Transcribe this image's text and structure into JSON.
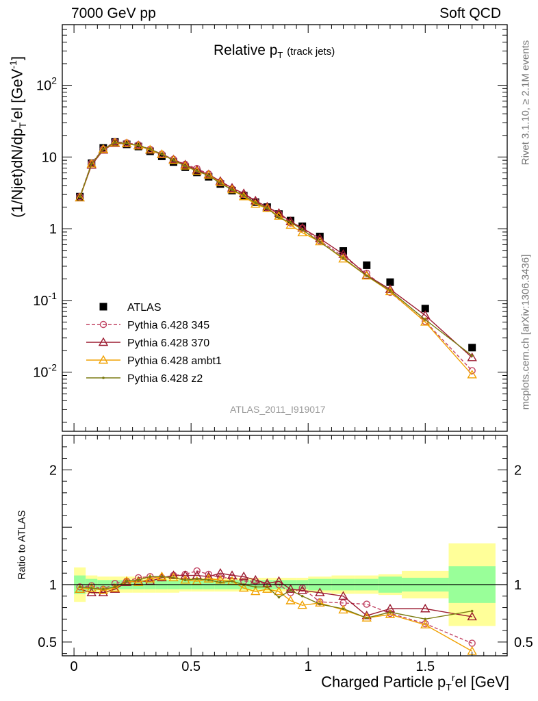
{
  "header": {
    "left": "7000 GeV pp",
    "right": "Soft QCD"
  },
  "side_labels": {
    "rivet": "Rivet 3.1.10, ≥ 2.1M events",
    "mcplots": "mcplots.cern.ch [arXiv:1306.3436]"
  },
  "plot_title": {
    "main": "Relative p",
    "sub": "T",
    "suffix": "(track jets)"
  },
  "analysis_id": "ATLAS_2011_I919017",
  "ylabel_top": "(1/Njet)dN/dp",
  "ylabel_top_sub": "T",
  "ylabel_top_sup": "r",
  "ylabel_top_rest": "el [GeV",
  "ylabel_top_exp": "-1",
  "ylabel_top_end": "]",
  "ylabel_bottom": "Ratio to ATLAS",
  "xlabel": "Charged Particle p",
  "xlabel_sub": "T",
  "xlabel_sup": "r",
  "xlabel_rest": "el [GeV]",
  "legend": [
    {
      "name": "ATLAS",
      "color": "#000000",
      "marker": "square"
    },
    {
      "name": "Pythia 6.428 345",
      "color": "#c04060",
      "marker": "circle",
      "dashed": true
    },
    {
      "name": "Pythia 6.428 370",
      "color": "#9b1b30",
      "marker": "triangle"
    },
    {
      "name": "Pythia 6.428 ambt1",
      "color": "#f0a000",
      "marker": "triangle"
    },
    {
      "name": "Pythia 6.428 z2",
      "color": "#7a7a10",
      "marker": "dot"
    }
  ],
  "colors": {
    "band_inner": "#99ff99",
    "band_outer": "#ffff99"
  },
  "chart_data": [
    {
      "type": "line",
      "panel": "main",
      "log_y": true,
      "xlim": [
        -0.05,
        1.85
      ],
      "ylim": [
        0.0015,
        700
      ],
      "yticks": [
        0.01,
        0.1,
        1,
        10,
        100
      ],
      "ytick_labels": [
        "10^-2",
        "10^-1",
        "1",
        "10",
        "10^2"
      ],
      "x": [
        0.025,
        0.075,
        0.125,
        0.175,
        0.225,
        0.275,
        0.325,
        0.375,
        0.425,
        0.475,
        0.525,
        0.575,
        0.625,
        0.675,
        0.725,
        0.775,
        0.825,
        0.875,
        0.925,
        0.975,
        1.05,
        1.15,
        1.25,
        1.35,
        1.5,
        1.7
      ],
      "series": [
        {
          "name": "ATLAS",
          "values": [
            2.8,
            8.2,
            13.4,
            16.2,
            15.0,
            14.0,
            12.0,
            10.2,
            8.5,
            7.2,
            6.1,
            5.3,
            4.2,
            3.4,
            2.9,
            2.35,
            2.0,
            1.6,
            1.3,
            1.08,
            0.78,
            0.49,
            0.31,
            0.18,
            0.077,
            0.022
          ]
        },
        {
          "name": "Pythia 6.428 345",
          "values": [
            2.8,
            8.2,
            13.0,
            16.3,
            15.8,
            14.8,
            12.8,
            11.0,
            9.3,
            7.9,
            6.9,
            5.8,
            4.5,
            3.6,
            3.0,
            2.4,
            1.95,
            1.62,
            1.2,
            1.02,
            0.68,
            0.41,
            0.24,
            0.13,
            0.051,
            0.0105
          ]
        },
        {
          "name": "Pythia 6.428 370",
          "values": [
            2.7,
            7.7,
            12.5,
            15.5,
            15.3,
            14.5,
            12.5,
            10.8,
            9.2,
            7.8,
            6.6,
            5.7,
            4.6,
            3.7,
            3.1,
            2.45,
            2.02,
            1.65,
            1.26,
            1.02,
            0.73,
            0.44,
            0.225,
            0.143,
            0.062,
            0.016
          ]
        },
        {
          "name": "Pythia 6.428 ambt1",
          "values": [
            2.7,
            8.0,
            12.8,
            15.8,
            15.4,
            14.3,
            12.6,
            10.9,
            9.0,
            7.5,
            6.3,
            5.6,
            4.4,
            3.5,
            2.8,
            2.2,
            1.92,
            1.5,
            1.12,
            0.88,
            0.66,
            0.38,
            0.22,
            0.133,
            0.05,
            0.0092
          ]
        },
        {
          "name": "Pythia 6.428 z2",
          "values": [
            2.75,
            8.0,
            12.9,
            15.9,
            15.5,
            14.5,
            12.9,
            10.9,
            9.0,
            7.5,
            6.4,
            5.5,
            4.3,
            3.5,
            2.9,
            2.3,
            1.95,
            1.42,
            1.23,
            0.97,
            0.65,
            0.39,
            0.22,
            0.137,
            0.054,
            0.017
          ]
        }
      ]
    },
    {
      "type": "line",
      "panel": "ratio",
      "xlim": [
        -0.05,
        1.85
      ],
      "ylim": [
        0.38,
        2.3
      ],
      "yticks": [
        0.5,
        1,
        2
      ],
      "xticks": [
        0,
        0.5,
        1,
        1.5
      ],
      "xtick_labels": [
        "0",
        "0.5",
        "1",
        "1.5"
      ],
      "bins": [
        0.0,
        0.05,
        0.1,
        0.15,
        0.2,
        0.25,
        0.3,
        0.35,
        0.4,
        0.45,
        0.5,
        0.55,
        0.6,
        0.65,
        0.7,
        0.75,
        0.8,
        0.85,
        0.9,
        0.95,
        1.0,
        1.1,
        1.2,
        1.3,
        1.4,
        1.6,
        1.8
      ],
      "band_inner": [
        0.08,
        0.05,
        0.04,
        0.04,
        0.04,
        0.04,
        0.04,
        0.04,
        0.04,
        0.04,
        0.04,
        0.04,
        0.04,
        0.04,
        0.04,
        0.04,
        0.04,
        0.04,
        0.04,
        0.04,
        0.05,
        0.05,
        0.05,
        0.07,
        0.06,
        0.16
      ],
      "band_outer": [
        0.15,
        0.08,
        0.07,
        0.07,
        0.07,
        0.07,
        0.07,
        0.07,
        0.07,
        0.06,
        0.06,
        0.06,
        0.06,
        0.06,
        0.06,
        0.06,
        0.06,
        0.06,
        0.06,
        0.06,
        0.07,
        0.08,
        0.08,
        0.09,
        0.12,
        0.36
      ],
      "x": [
        0.025,
        0.075,
        0.125,
        0.175,
        0.225,
        0.275,
        0.325,
        0.375,
        0.425,
        0.475,
        0.525,
        0.575,
        0.625,
        0.675,
        0.725,
        0.775,
        0.825,
        0.875,
        0.925,
        0.975,
        1.05,
        1.15,
        1.25,
        1.35,
        1.5,
        1.7
      ],
      "series": [
        {
          "name": "Pythia 6.428 345",
          "values": [
            0.98,
            0.99,
            0.96,
            1.01,
            1.03,
            1.06,
            1.07,
            1.06,
            1.08,
            1.09,
            1.12,
            1.09,
            1.06,
            1.06,
            1.03,
            1.03,
            1.0,
            1.0,
            0.93,
            0.97,
            0.85,
            0.84,
            0.83,
            0.75,
            0.66,
            0.49
          ]
        },
        {
          "name": "Pythia 6.428 370",
          "values": [
            0.96,
            0.93,
            0.93,
            0.96,
            1.02,
            1.03,
            1.03,
            1.06,
            1.08,
            1.08,
            1.08,
            1.07,
            1.1,
            1.08,
            1.07,
            1.04,
            1.01,
            1.03,
            0.96,
            0.95,
            0.93,
            0.9,
            0.73,
            0.79,
            0.79,
            0.72
          ]
        },
        {
          "name": "Pythia 6.428 ambt1",
          "values": [
            0.96,
            0.97,
            0.95,
            0.97,
            1.03,
            1.02,
            1.05,
            1.07,
            1.06,
            1.04,
            1.03,
            1.05,
            1.04,
            1.03,
            0.97,
            0.94,
            0.96,
            0.94,
            0.86,
            0.82,
            0.84,
            0.78,
            0.71,
            0.74,
            0.65,
            0.42
          ]
        },
        {
          "name": "Pythia 6.428 z2",
          "values": [
            0.98,
            0.97,
            0.96,
            0.98,
            1.03,
            1.04,
            1.07,
            1.07,
            1.06,
            1.04,
            1.05,
            1.04,
            1.02,
            1.03,
            1.0,
            0.98,
            0.98,
            0.89,
            0.95,
            0.9,
            0.83,
            0.79,
            0.71,
            0.76,
            0.7,
            0.77
          ]
        }
      ]
    }
  ]
}
